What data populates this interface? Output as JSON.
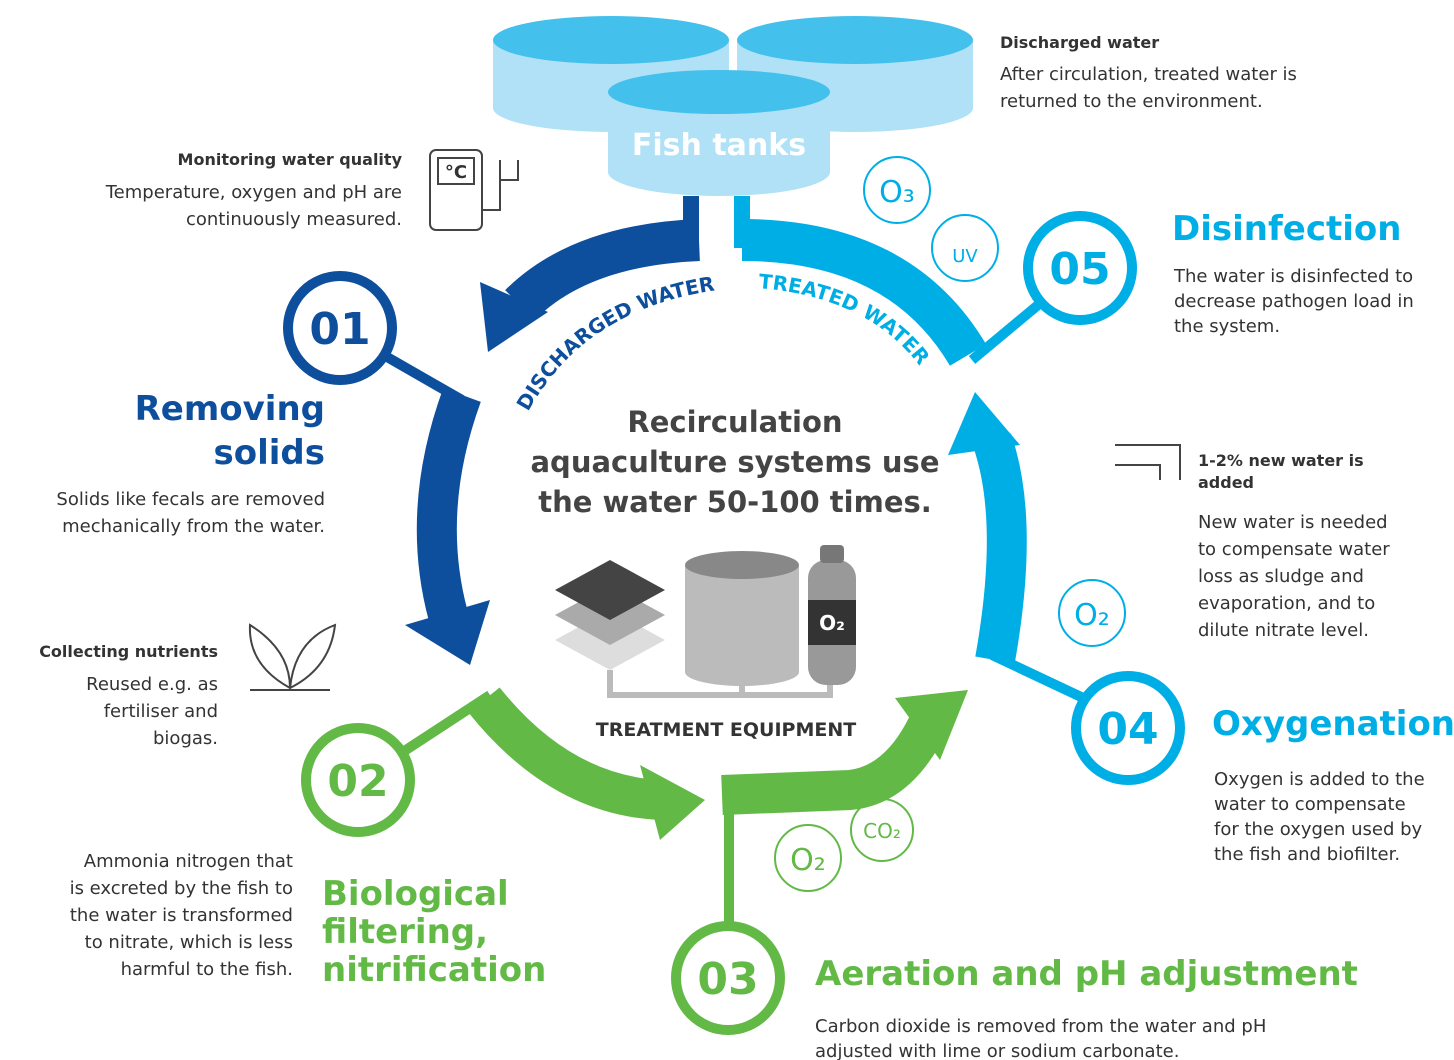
{
  "tanks": {
    "label": "Fish tanks"
  },
  "center": {
    "lines": [
      "Recirculation",
      "aquaculture systems use",
      "the water 50-100 times."
    ],
    "equipment": "TREATMENT EQUIPMENT",
    "bottle": "O₂"
  },
  "flow": {
    "discharged": "DISCHARGED WATER",
    "treated": "TREATED WATER"
  },
  "steps": [
    {
      "number": "01",
      "title": [
        "Removing",
        "solids"
      ],
      "body": [
        "Solids like fecals are removed",
        "mechanically from the water."
      ]
    },
    {
      "number": "02",
      "title": [
        "Biological",
        "filtering,",
        "nitrification"
      ],
      "body": [
        "Ammonia nitrogen that",
        "is excreted by the fish to",
        "the water is transformed",
        "to nitrate, which is less",
        "harmful to the fish."
      ]
    },
    {
      "number": "03",
      "title": [
        "Aeration and pH adjustment"
      ],
      "body": [
        "Carbon dioxide is removed from the water and pH",
        "adjusted with lime or sodium carbonate."
      ]
    },
    {
      "number": "04",
      "title": [
        "Oxygenation"
      ],
      "body": [
        "Oxygen is added to the",
        "water to compensate",
        "for the oxygen used by",
        "the fish and biofilter."
      ]
    },
    {
      "number": "05",
      "title": [
        "Disinfection"
      ],
      "body": [
        "The water is disinfected to",
        "decrease pathogen load in",
        "the system."
      ]
    }
  ],
  "notes": {
    "monitoring": {
      "title": "Monitoring water quality",
      "body": [
        "Temperature, oxygen and pH are",
        "continuously measured."
      ],
      "unit": "°C"
    },
    "discharged": {
      "title": "Discharged water",
      "body": [
        "After circulation, treated water is",
        "returned to the environment."
      ]
    },
    "nutrients": {
      "title": "Collecting nutrients",
      "body": [
        "Reused e.g. as",
        "fertiliser and",
        "biogas."
      ]
    },
    "newwater": {
      "title": [
        "1-2% new water is",
        "added"
      ],
      "body": [
        "New water is needed",
        "to compensate water",
        "loss as sludge and",
        "evaporation, and to",
        "dilute nitrate level."
      ]
    }
  },
  "icons": {
    "ozone": "O₃",
    "uv": "UV",
    "oxygen_blue": "O₂",
    "oxygen_green": "O₂",
    "co2": "CO₂"
  }
}
